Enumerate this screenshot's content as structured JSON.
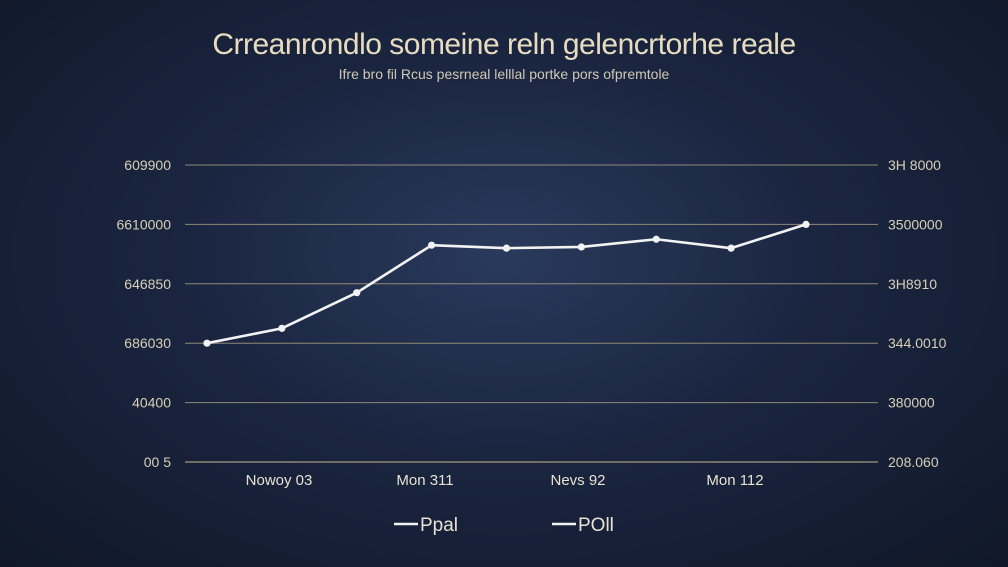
{
  "chart_data": {
    "type": "line",
    "title": "Crreanrondlo someine reln gelencrtorhe reale",
    "subtitle": "Ifre bro fil Rcus pesrneal lelllal portke pors ofpremtole",
    "x": [
      "",
      "Nowoy 03",
      "",
      "Mon 311",
      "",
      "Nevs 92",
      "",
      "Mon 112",
      ""
    ],
    "x_tick_labels": [
      "Nowoy 03",
      "Mon 311",
      "Nevs 92",
      "Mon 112"
    ],
    "y_left_tick_labels": [
      "609900",
      "6610000",
      "646850",
      "686030",
      "40400",
      "00 5"
    ],
    "y_right_tick_labels": [
      "3H 8000",
      "3500000",
      "3H8910",
      "344.0010",
      "380000",
      "208.060"
    ],
    "ylim": [
      0,
      5
    ],
    "series": [
      {
        "name": "Ppal",
        "values": [
          2.0,
          2.25,
          2.85,
          3.65,
          3.6,
          3.62,
          3.75,
          3.6,
          4.0
        ],
        "color": "#f2f2f2"
      }
    ],
    "legend": {
      "placement": "bottom-center",
      "entries": [
        "Ppal",
        "POll"
      ]
    },
    "grid": true,
    "grid_color": "#b8a888"
  }
}
